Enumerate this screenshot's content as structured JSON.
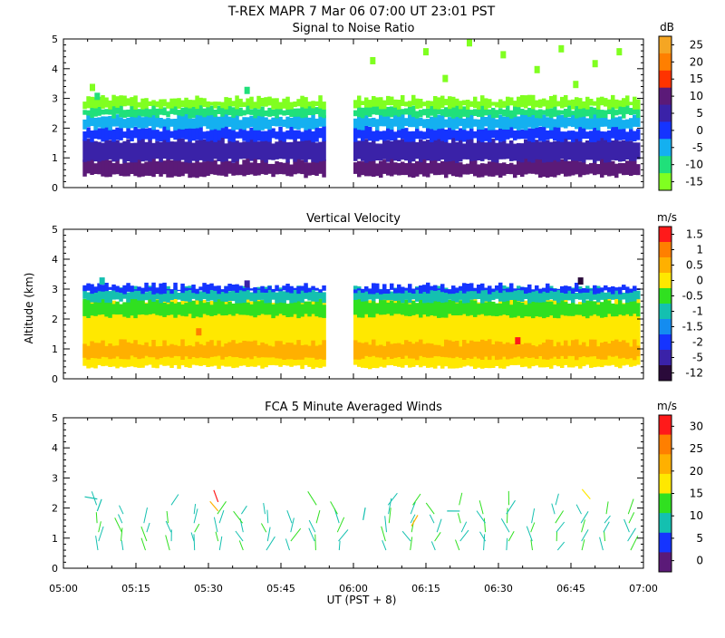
{
  "header": {
    "title": "T-REX   MAPR   7 Mar 06   07:00 UT   23:01   PST"
  },
  "x_axis": {
    "tick_labels": [
      "05:00",
      "05:15",
      "05:30",
      "05:45",
      "06:00",
      "06:15",
      "06:30",
      "06:45",
      "07:00"
    ],
    "label": "UT  (PST + 8)"
  },
  "y_axis": {
    "label": "Altitude (km)",
    "tick_labels": [
      "0",
      "1",
      "2",
      "3",
      "4",
      "5"
    ]
  },
  "chart_data": [
    {
      "type": "heatmap",
      "title": "Signal to Noise Ratio",
      "unit": "dB",
      "xlim": [
        0,
        120
      ],
      "ylim": [
        0,
        5
      ],
      "colorbar_labels": [
        "25",
        "20",
        "15",
        "10",
        "5",
        "0",
        "-5",
        "-10",
        "-15"
      ],
      "colors": [
        "#f5a623",
        "#ff7f00",
        "#ff3300",
        "#5b1a78",
        "#3a22a8",
        "#1534ff",
        "#14b0f0",
        "#20e07a",
        "#80ff20"
      ],
      "segments": [
        {
          "x_start": 4,
          "x_end": 54
        },
        {
          "x_start": 60,
          "x_end": 119
        }
      ],
      "layers": [
        {
          "y0": 0.4,
          "y1": 0.9,
          "level": 10
        },
        {
          "y0": 0.9,
          "y1": 1.6,
          "level": 5
        },
        {
          "y0": 1.6,
          "y1": 2.0,
          "level": 0
        },
        {
          "y0": 2.0,
          "y1": 2.4,
          "level": -5
        },
        {
          "y0": 2.4,
          "y1": 2.7,
          "level": -10
        },
        {
          "y0": 2.7,
          "y1": 3.0,
          "level": -15
        }
      ],
      "scatter": [
        {
          "x": 6,
          "y": 3.4,
          "level": -15
        },
        {
          "x": 7,
          "y": 3.1,
          "level": -10
        },
        {
          "x": 38,
          "y": 3.3,
          "level": -10
        },
        {
          "x": 64,
          "y": 4.3,
          "level": -15
        },
        {
          "x": 75,
          "y": 4.6,
          "level": -15
        },
        {
          "x": 84,
          "y": 4.9,
          "level": -15
        },
        {
          "x": 91,
          "y": 4.5,
          "level": -15
        },
        {
          "x": 98,
          "y": 4.0,
          "level": -15
        },
        {
          "x": 103,
          "y": 4.7,
          "level": -15
        },
        {
          "x": 110,
          "y": 4.2,
          "level": -15
        },
        {
          "x": 115,
          "y": 4.6,
          "level": -15
        },
        {
          "x": 79,
          "y": 3.7,
          "level": -15
        },
        {
          "x": 106,
          "y": 3.5,
          "level": -15
        }
      ]
    },
    {
      "type": "heatmap",
      "title": "Vertical Velocity",
      "unit": "m/s",
      "xlim": [
        0,
        120
      ],
      "ylim": [
        0,
        5
      ],
      "colorbar_labels": [
        "1.5",
        "1",
        "0.5",
        "0",
        "-0.5",
        "-1",
        "-1.5",
        "-2",
        "-5",
        "-12"
      ],
      "colors": [
        "#ff1a1a",
        "#ff7f00",
        "#ffb000",
        "#ffe800",
        "#30e020",
        "#14c0b0",
        "#148cf0",
        "#1534ff",
        "#3a22a8",
        "#2a0a3a"
      ],
      "segments": [
        {
          "x_start": 4,
          "x_end": 54
        },
        {
          "x_start": 60,
          "x_end": 119
        }
      ],
      "layers": [
        {
          "y0": 0.4,
          "y1": 2.6,
          "level": 0
        },
        {
          "y0": 0.7,
          "y1": 1.2,
          "level": 0.5
        },
        {
          "y0": 2.1,
          "y1": 2.6,
          "level": -0.5
        },
        {
          "y0": 2.6,
          "y1": 3.0,
          "level": -1
        },
        {
          "y0": 2.9,
          "y1": 3.1,
          "level": -2
        }
      ],
      "scatter": [
        {
          "x": 8,
          "y": 3.3,
          "level": -1
        },
        {
          "x": 38,
          "y": 3.2,
          "level": -5
        },
        {
          "x": 107,
          "y": 3.3,
          "level": -12
        },
        {
          "x": 28,
          "y": 1.6,
          "level": 1
        },
        {
          "x": 94,
          "y": 1.3,
          "level": 1.5
        }
      ]
    },
    {
      "type": "barbs",
      "title": "FCA 5 Minute Averaged Winds",
      "unit": "m/s",
      "xlim": [
        0,
        120
      ],
      "ylim": [
        0,
        5
      ],
      "colorbar_labels": [
        "30",
        "25",
        "20",
        "15",
        "10",
        "5",
        "0"
      ],
      "colors": [
        "#ff1a1a",
        "#ff7f00",
        "#ffb000",
        "#ffe800",
        "#30e020",
        "#14c0b0",
        "#1534ff",
        "#5b1a78"
      ],
      "profile_times": [
        7,
        12,
        17,
        22,
        27,
        32,
        37,
        42,
        47,
        52,
        57,
        67,
        72,
        77,
        82,
        87,
        92,
        97,
        102,
        107,
        112,
        117
      ],
      "profile_heights": [
        0.6,
        0.9,
        1.2,
        1.5,
        1.8,
        2.1
      ],
      "barbs": [
        {
          "x": 7,
          "y": 2.3,
          "dir": 280,
          "speed": 6
        },
        {
          "x": 7,
          "y": 1.9,
          "dir": 20,
          "speed": 4
        },
        {
          "x": 32,
          "y": 2.2,
          "dir": 340,
          "speed": 28
        },
        {
          "x": 32,
          "y": 1.9,
          "dir": 320,
          "speed": 22
        },
        {
          "x": 62,
          "y": 1.6,
          "dir": 10,
          "speed": 5
        },
        {
          "x": 82,
          "y": 1.9,
          "dir": 270,
          "speed": 7
        },
        {
          "x": 109,
          "y": 2.3,
          "dir": 320,
          "speed": 14
        },
        {
          "x": 72,
          "y": 1.4,
          "dir": 30,
          "speed": 18
        }
      ]
    }
  ]
}
